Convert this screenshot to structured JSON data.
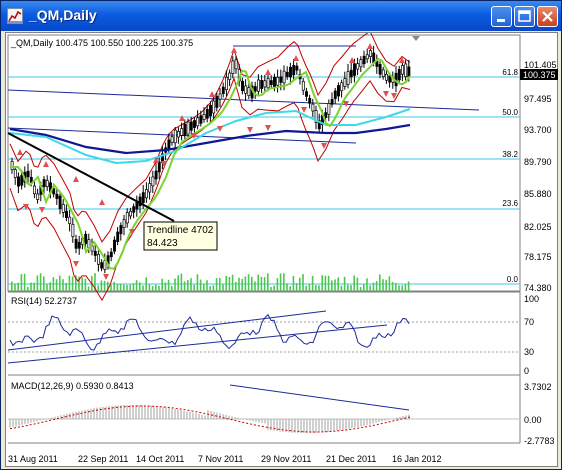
{
  "window": {
    "title": "_QM,Daily",
    "icon": "chart-window-icon",
    "buttons": [
      "minimize-icon",
      "maximize-icon",
      "close-icon"
    ]
  },
  "main_panel": {
    "header": "_QM,Daily  100.475 100.550 100.225 100.375",
    "price_labels": [
      "101.405",
      "97.495",
      "93.700",
      "89.790",
      "85.880",
      "82.025",
      "78.175",
      "74.380"
    ],
    "current_price": "100.375",
    "fib_labels": [
      "61.8",
      "50.0",
      "38.2",
      "23.6",
      "0.0"
    ],
    "trendline_tooltip": {
      "line1": "Trendline 4702",
      "line2": "84.423"
    }
  },
  "rsi_panel": {
    "header": "RSI(14) 52.2737",
    "labels": [
      "100",
      "70",
      "30",
      "0"
    ]
  },
  "macd_panel": {
    "header": "MACD(12,26,9) 0.5930 0.8413",
    "labels": [
      "3.7302",
      "0.00",
      "-2.7783"
    ]
  },
  "time_axis": [
    "31 Aug 2011",
    "22 Sep 2011",
    "14 Oct 2011",
    "7 Nov 2011",
    "29 Nov 2011",
    "21 Dec 2011",
    "16 Jan 2012"
  ],
  "colors": {
    "titlebar": "#0a5be0",
    "bollinger": "#c00000",
    "ma_fast": "#7cd42e",
    "ma_slow_cyan": "#3fd8e8",
    "ma_long_navy": "#101890",
    "trendline": "#000000",
    "fib_lines": "#40c8e8",
    "fractal_arrows": "#e05050",
    "volume": "#4cc64c"
  }
}
